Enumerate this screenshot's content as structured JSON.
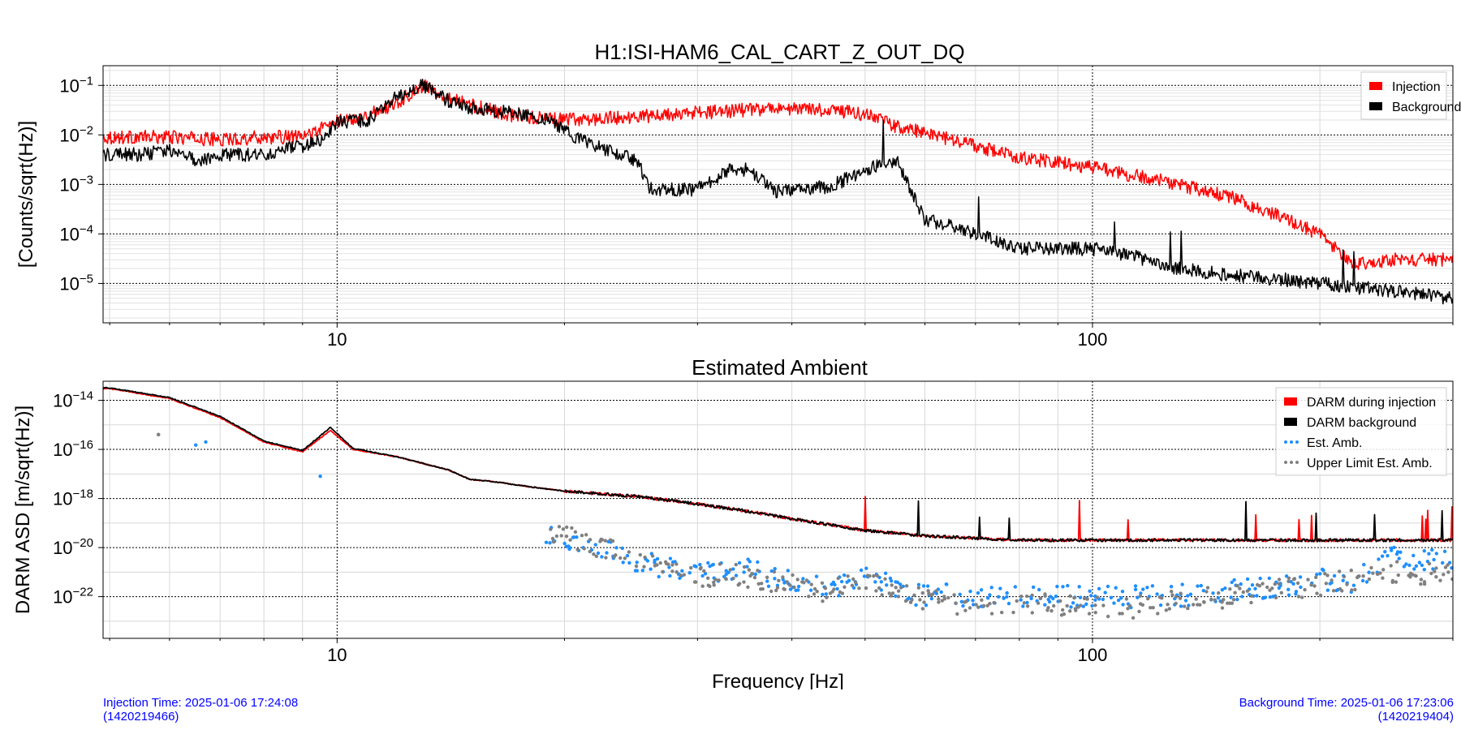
{
  "chart_data": [
    {
      "type": "line",
      "title": "H1:ISI-HAM6_CAL_CART_Z_OUT_DQ",
      "xlabel": "",
      "ylabel": "[Counts/sqrt(Hz)]",
      "xscale": "log",
      "yscale": "log",
      "xlim": [
        4.9,
        300
      ],
      "ylim": [
        1.6e-06,
        0.25
      ],
      "x_tick_labels": [
        "10",
        "100"
      ],
      "x_tick_values": [
        10,
        100
      ],
      "y_ticks": [
        {
          "value": 1e-05,
          "base": "10",
          "exp": "−5"
        },
        {
          "value": 0.0001,
          "base": "10",
          "exp": "−4"
        },
        {
          "value": 0.001,
          "base": "10",
          "exp": "−3"
        },
        {
          "value": 0.01,
          "base": "10",
          "exp": "−2"
        },
        {
          "value": 0.1,
          "base": "10",
          "exp": "−1"
        }
      ],
      "grid": true,
      "legend": "top-right",
      "series": [
        {
          "name": "Injection",
          "color": "#ff0000",
          "x": [
            5,
            6,
            7,
            8,
            9,
            10,
            11,
            12,
            13,
            14,
            15,
            17,
            20,
            25,
            30,
            35,
            40,
            45,
            50,
            55,
            60,
            70,
            80,
            100,
            120,
            150,
            170,
            200,
            220,
            250,
            300
          ],
          "y": [
            0.009,
            0.009,
            0.008,
            0.009,
            0.009,
            0.019,
            0.025,
            0.045,
            0.1,
            0.06,
            0.04,
            0.025,
            0.02,
            0.023,
            0.028,
            0.032,
            0.034,
            0.032,
            0.026,
            0.015,
            0.011,
            0.006,
            0.0035,
            0.0022,
            0.0013,
            0.0006,
            0.0003,
            0.0001,
            2.5e-05,
            3e-05,
            3e-05
          ]
        },
        {
          "name": "Background",
          "color": "#000000",
          "x": [
            5,
            5.5,
            6,
            6.5,
            7,
            8,
            9,
            9.5,
            10,
            11,
            12,
            13,
            14,
            15,
            17,
            19,
            20,
            22,
            25,
            26,
            27,
            30,
            33,
            35,
            38,
            40,
            45,
            50,
            55,
            60,
            70,
            80,
            90,
            100,
            110,
            130,
            150,
            165,
            180,
            200,
            250,
            300
          ],
          "y": [
            0.004,
            0.004,
            0.005,
            0.003,
            0.004,
            0.004,
            0.006,
            0.008,
            0.018,
            0.02,
            0.06,
            0.1,
            0.05,
            0.035,
            0.028,
            0.02,
            0.012,
            0.006,
            0.003,
            0.0008,
            0.0008,
            0.0008,
            0.002,
            0.002,
            0.0007,
            0.0008,
            0.0009,
            0.002,
            0.003,
            0.0002,
            0.0001,
            5e-05,
            5e-05,
            5e-05,
            4e-05,
            2e-05,
            1.5e-05,
            1.3e-05,
            1.2e-05,
            1e-05,
            7e-06,
            5e-06
          ]
        }
      ]
    },
    {
      "type": "line",
      "title": "Estimated Ambient",
      "xlabel": "Frequency [Hz]",
      "ylabel": "DARM ASD [m/sqrt(Hz)]",
      "xscale": "log",
      "yscale": "log",
      "xlim": [
        4.9,
        300
      ],
      "ylim": [
        2e-24,
        6e-14
      ],
      "x_tick_labels": [
        "10",
        "100"
      ],
      "x_tick_values": [
        10,
        100
      ],
      "y_ticks": [
        {
          "value": 1e-22,
          "base": "10",
          "exp": "−22"
        },
        {
          "value": 1e-20,
          "base": "10",
          "exp": "−20"
        },
        {
          "value": 1e-18,
          "base": "10",
          "exp": "−18"
        },
        {
          "value": 1e-16,
          "base": "10",
          "exp": "−16"
        },
        {
          "value": 1e-14,
          "base": "10",
          "exp": "−14"
        }
      ],
      "grid": true,
      "legend": "top-right",
      "series": [
        {
          "name": "DARM during injection",
          "color": "#ff0000",
          "kind": "line",
          "x": [
            5,
            6,
            7,
            8,
            9,
            9.8,
            10.5,
            12,
            14,
            15,
            16,
            18,
            20,
            25,
            30,
            35,
            40,
            50,
            60,
            80,
            100,
            150,
            200,
            300
          ],
          "y": [
            3e-14,
            1.2e-14,
            2e-15,
            2e-16,
            8e-17,
            6e-16,
            1e-16,
            5e-17,
            1.5e-17,
            6e-18,
            5e-18,
            3e-18,
            2e-18,
            1.2e-18,
            6e-19,
            3e-19,
            1.5e-19,
            5e-20,
            3e-20,
            2e-20,
            2e-20,
            2e-20,
            2e-20,
            2e-20
          ]
        },
        {
          "name": "DARM background",
          "color": "#000000",
          "kind": "line",
          "x": [
            5,
            6,
            7,
            8,
            9,
            9.8,
            10.5,
            12,
            14,
            15,
            16,
            18,
            20,
            25,
            30,
            35,
            40,
            50,
            60,
            80,
            100,
            150,
            200,
            300
          ],
          "y": [
            3.2e-14,
            1.3e-14,
            2.2e-15,
            2.2e-16,
            9e-17,
            8e-16,
            1.1e-16,
            5e-17,
            1.5e-17,
            6e-18,
            5e-18,
            3e-18,
            2e-18,
            1.2e-18,
            6e-19,
            3e-19,
            1.5e-19,
            5e-20,
            3e-20,
            2e-20,
            2e-20,
            2e-20,
            2e-20,
            2e-20
          ]
        },
        {
          "name": "Est. Amb.",
          "color": "#1e8fff",
          "kind": "points",
          "x": [
            5.8,
            6.5,
            6.7,
            9.5,
            22,
            25,
            27,
            30,
            33,
            35,
            37,
            40,
            45,
            50,
            55,
            60,
            65,
            70,
            80,
            90,
            100,
            110,
            120,
            140,
            160,
            180,
            200,
            220,
            250,
            280,
            300
          ],
          "y": [
            4e-16,
            1.5e-16,
            2e-16,
            8e-18,
            1e-20,
            3e-21,
            1.5e-21,
            8e-22,
            1e-21,
            1.5e-21,
            7e-22,
            4e-22,
            2e-22,
            8e-22,
            2e-22,
            1e-22,
            1.2e-22,
            8e-23,
            1e-22,
            1e-22,
            1.1e-22,
            1e-22,
            1e-22,
            1.2e-22,
            2e-22,
            3e-22,
            5e-22,
            4e-22,
            4e-21,
            3e-21,
            3e-21
          ]
        },
        {
          "name": "Upper Limit Est. Amb.",
          "color": "#808080",
          "kind": "points",
          "x": [
            5.8,
            20,
            24,
            26,
            28,
            30,
            33,
            36,
            40,
            45,
            50,
            55,
            60,
            70,
            80,
            90,
            100,
            110,
            120,
            140,
            160,
            180,
            200,
            220,
            250,
            280,
            300
          ],
          "y": [
            4e-16,
            3e-20,
            5e-21,
            2e-21,
            1e-21,
            6e-22,
            1e-21,
            5e-22,
            3e-22,
            1.5e-22,
            6e-22,
            1.5e-22,
            8e-23,
            4e-23,
            5e-23,
            5e-23,
            5e-23,
            3e-23,
            5e-23,
            8e-23,
            1.2e-22,
            2e-22,
            3e-22,
            5e-22,
            1e-21,
            8e-22,
            1e-21
          ]
        }
      ]
    }
  ],
  "footer": {
    "injection_line1": "Injection Time: 2025-01-06 17:24:08",
    "injection_line2": "(1420219466)",
    "background_line1": "Background Time: 2025-01-06 17:23:06",
    "background_line2": "(1420219404)"
  }
}
